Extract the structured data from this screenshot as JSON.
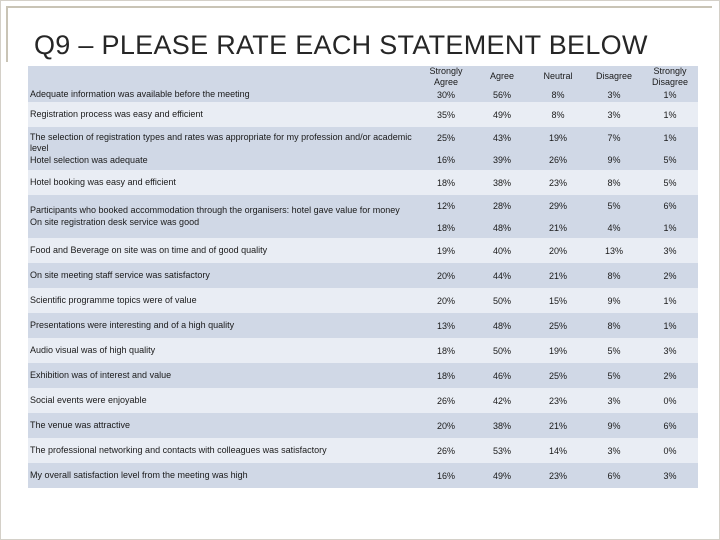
{
  "title": "Q9 – PLEASE RATE EACH STATEMENT BELOW",
  "columns": [
    "Strongly Agree",
    "Agree",
    "Neutral",
    "Disagree",
    "Strongly Disagree"
  ],
  "rows": [
    {
      "statement": "Adequate information was available before the meeting",
      "values": [
        "30%",
        "56%",
        "8%",
        "3%",
        "1%"
      ]
    },
    {
      "statement": "Registration process was easy and efficient",
      "values": [
        "35%",
        "49%",
        "8%",
        "3%",
        "1%"
      ]
    },
    {
      "statement": "The selection of registration types and rates was appropriate for my profession and/or academic level",
      "statement2": "Hotel selection was adequate",
      "values": [
        "25%",
        "43%",
        "19%",
        "7%",
        "1%"
      ],
      "values2": [
        "16%",
        "39%",
        "26%",
        "9%",
        "5%"
      ]
    },
    {
      "statement": "Hotel booking was easy and efficient",
      "values": [
        "18%",
        "38%",
        "23%",
        "8%",
        "5%"
      ]
    },
    {
      "statement": "Participants who booked accommodation through the organisers: hotel gave value for money",
      "statement2": "On site registration desk service was good",
      "values": [
        "12%",
        "28%",
        "29%",
        "5%",
        "6%"
      ],
      "values2": [
        "18%",
        "48%",
        "21%",
        "4%",
        "1%"
      ]
    },
    {
      "statement": "Food and Beverage on site was on time and of good quality",
      "values": [
        "19%",
        "40%",
        "20%",
        "13%",
        "3%"
      ]
    },
    {
      "statement": "On site meeting staff service was satisfactory",
      "values": [
        "20%",
        "44%",
        "21%",
        "8%",
        "2%"
      ]
    },
    {
      "statement": "Scientific programme topics were of value",
      "values": [
        "20%",
        "50%",
        "15%",
        "9%",
        "1%"
      ]
    },
    {
      "statement": "Presentations were interesting and of a high quality",
      "values": [
        "13%",
        "48%",
        "25%",
        "8%",
        "1%"
      ]
    },
    {
      "statement": "Audio visual was of high quality",
      "values": [
        "18%",
        "50%",
        "19%",
        "5%",
        "3%"
      ]
    },
    {
      "statement": "Exhibition was of interest and value",
      "values": [
        "18%",
        "46%",
        "25%",
        "5%",
        "2%"
      ]
    },
    {
      "statement": "Social events were enjoyable",
      "values": [
        "26%",
        "42%",
        "23%",
        "3%",
        "0%"
      ]
    },
    {
      "statement": "The venue was attractive",
      "values": [
        "20%",
        "38%",
        "21%",
        "9%",
        "6%"
      ]
    },
    {
      "statement": "The professional networking and contacts with colleagues was satisfactory",
      "values": [
        "26%",
        "53%",
        "14%",
        "3%",
        "0%"
      ]
    },
    {
      "statement": "My overall satisfaction level from the meeting was high",
      "values": [
        "16%",
        "49%",
        "23%",
        "6%",
        "3%"
      ]
    }
  ]
}
